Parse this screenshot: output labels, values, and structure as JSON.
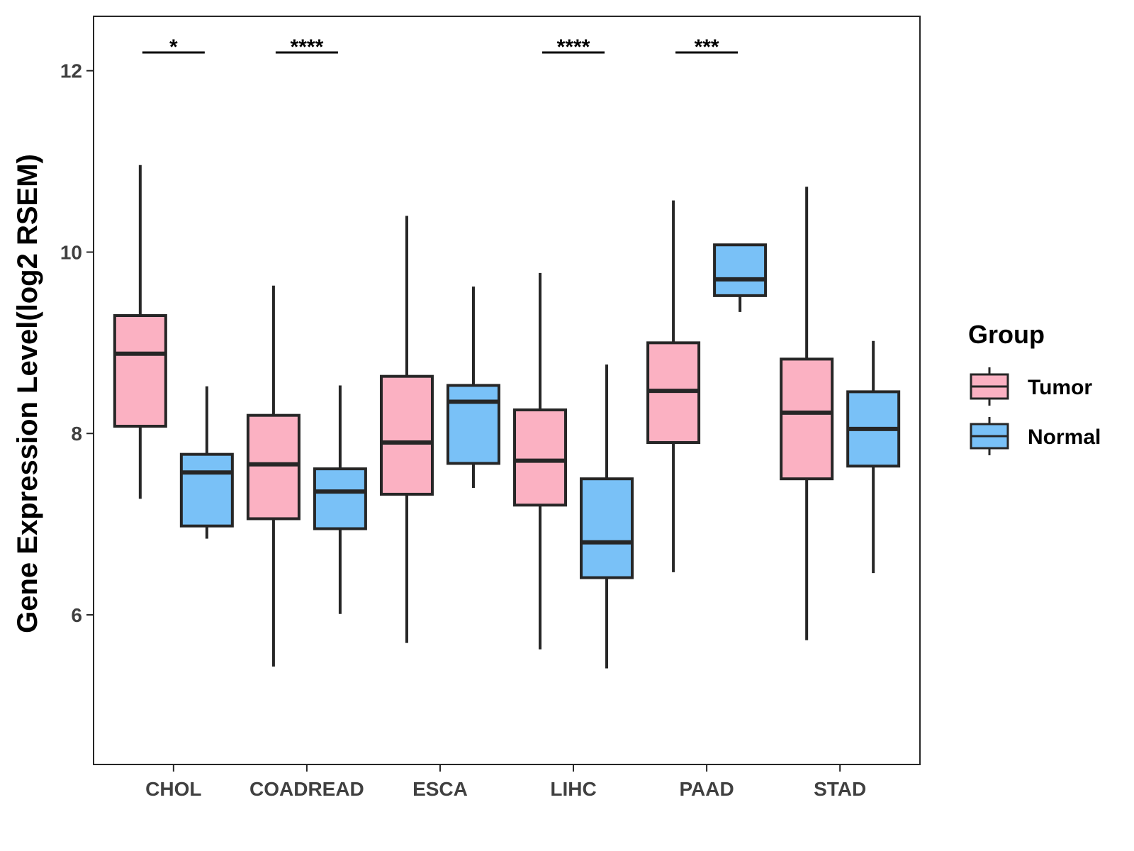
{
  "chart_data": {
    "type": "boxplot",
    "title": "",
    "xlabel": "",
    "ylabel": "Gene Expression Level(log2 RSEM)",
    "ylim": [
      4.35,
      12.6
    ],
    "yticks": [
      6,
      8,
      10,
      12
    ],
    "grid": false,
    "categories": [
      "CHOL",
      "COADREAD",
      "ESCA",
      "LIHC",
      "PAAD",
      "STAD"
    ],
    "series": [
      {
        "name": "Tumor",
        "color": "#fbb1c2",
        "boxes": [
          {
            "min": 7.28,
            "q1": 8.08,
            "median": 8.88,
            "q3": 9.3,
            "max": 10.96
          },
          {
            "min": 5.43,
            "q1": 7.06,
            "median": 7.66,
            "q3": 8.2,
            "max": 9.63
          },
          {
            "min": 5.69,
            "q1": 7.33,
            "median": 7.9,
            "q3": 8.63,
            "max": 10.4
          },
          {
            "min": 5.62,
            "q1": 7.21,
            "median": 7.7,
            "q3": 8.26,
            "max": 9.77
          },
          {
            "min": 6.47,
            "q1": 7.9,
            "median": 8.47,
            "q3": 9.0,
            "max": 10.57
          },
          {
            "min": 5.72,
            "q1": 7.5,
            "median": 8.23,
            "q3": 8.82,
            "max": 10.72
          }
        ]
      },
      {
        "name": "Normal",
        "color": "#79c1f7",
        "boxes": [
          {
            "min": 6.84,
            "q1": 6.98,
            "median": 7.57,
            "q3": 7.77,
            "max": 8.52
          },
          {
            "min": 6.01,
            "q1": 6.95,
            "median": 7.36,
            "q3": 7.61,
            "max": 8.53
          },
          {
            "min": 7.4,
            "q1": 7.67,
            "median": 8.35,
            "q3": 8.53,
            "max": 9.62
          },
          {
            "min": 5.41,
            "q1": 6.41,
            "median": 6.8,
            "q3": 7.5,
            "max": 8.76
          },
          {
            "min": 9.34,
            "q1": 9.52,
            "median": 9.7,
            "q3": 10.08,
            "max": 10.08
          },
          {
            "min": 6.46,
            "q1": 7.64,
            "median": 8.05,
            "q3": 8.46,
            "max": 9.02
          }
        ]
      }
    ],
    "significance": [
      {
        "category": "CHOL",
        "label": "*"
      },
      {
        "category": "COADREAD",
        "label": "****"
      },
      {
        "category": "ESCA",
        "label": ""
      },
      {
        "category": "LIHC",
        "label": "****"
      },
      {
        "category": "PAAD",
        "label": "***"
      },
      {
        "category": "STAD",
        "label": ""
      }
    ],
    "legend": {
      "title": "Group",
      "position": "right",
      "entries": [
        "Tumor",
        "Normal"
      ]
    }
  }
}
